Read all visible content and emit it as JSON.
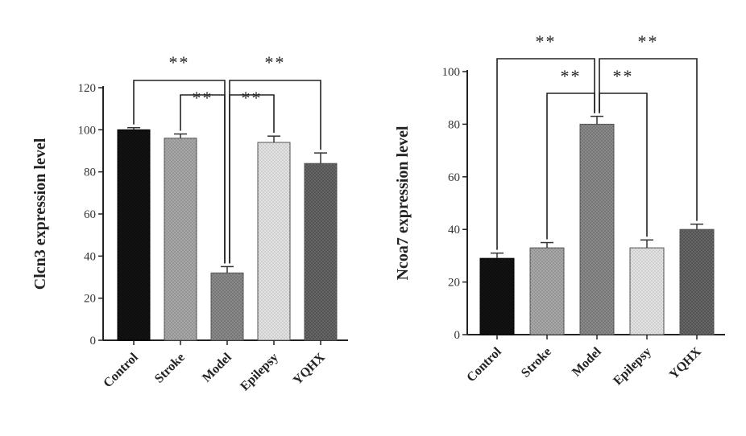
{
  "chart_data": [
    {
      "type": "bar",
      "title": "",
      "ylabel": "Clcn3 expression level",
      "xlabel": "",
      "ylim": [
        0,
        120
      ],
      "yticks": [
        "0",
        "20",
        "40",
        "60",
        "80",
        "100",
        "120"
      ],
      "categories": [
        "Control",
        "Stroke",
        "Model",
        "Epilepsy",
        "YQHX"
      ],
      "values": [
        100,
        96,
        32,
        94,
        84
      ],
      "errors": [
        1,
        2,
        3,
        3,
        5
      ],
      "colors": [
        "#0d0d0d",
        "#9a9a9a",
        "#777777",
        "#d9d9d9",
        "#555555"
      ],
      "significance": [
        {
          "from": "Control",
          "to": "Model",
          "label": "**"
        },
        {
          "from": "Model",
          "to": "YQHX",
          "label": "**"
        },
        {
          "from": "Stroke",
          "to": "Model",
          "label": "**"
        },
        {
          "from": "Model",
          "to": "Epilepsy",
          "label": "**"
        }
      ]
    },
    {
      "type": "bar",
      "title": "",
      "ylabel": "Ncoa7 expression level",
      "xlabel": "",
      "ylim": [
        0,
        100
      ],
      "yticks": [
        "0",
        "20",
        "40",
        "60",
        "80",
        "100"
      ],
      "categories": [
        "Control",
        "Stroke",
        "Model",
        "Epilepsy",
        "YQHX"
      ],
      "values": [
        29,
        33,
        80,
        33,
        40
      ],
      "errors": [
        2,
        2,
        3,
        3,
        2
      ],
      "colors": [
        "#0d0d0d",
        "#9a9a9a",
        "#777777",
        "#d9d9d9",
        "#555555"
      ],
      "significance": [
        {
          "from": "Control",
          "to": "Model",
          "label": "**"
        },
        {
          "from": "Model",
          "to": "YQHX",
          "label": "**"
        },
        {
          "from": "Stroke",
          "to": "Model",
          "label": "**"
        },
        {
          "from": "Model",
          "to": "Epilepsy",
          "label": "**"
        }
      ]
    }
  ]
}
